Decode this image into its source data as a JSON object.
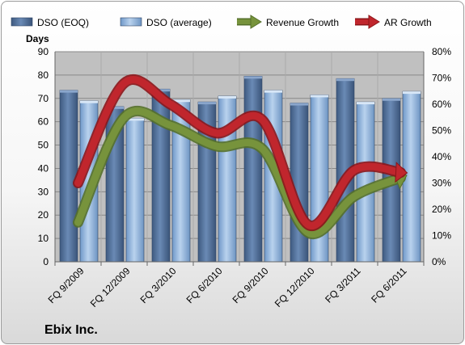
{
  "chart_data": {
    "type": "bar",
    "company": "Ebix Inc.",
    "ylabel": "Days",
    "categories": [
      "FQ 9/2009",
      "FQ 12/2009",
      "FQ 3/2010",
      "FQ 6/2010",
      "FQ 9/2010",
      "FQ 12/2010",
      "FQ 3/2011",
      "FQ 6/2011"
    ],
    "ylim": [
      0,
      90
    ],
    "y2lim": [
      0,
      0.8
    ],
    "yticks": [
      "0",
      "10",
      "20",
      "30",
      "40",
      "50",
      "60",
      "70",
      "80",
      "90"
    ],
    "y2ticks": [
      "0%",
      "10%",
      "20%",
      "30%",
      "40%",
      "50%",
      "60%",
      "70%",
      "80%"
    ],
    "series": [
      {
        "name": "DSO (EOQ)",
        "kind": "bar",
        "axis": "left",
        "color": "#4f6d96",
        "values": [
          73.5,
          66.5,
          74,
          68.5,
          79.5,
          68,
          78.5,
          70
        ]
      },
      {
        "name": "DSO (average)",
        "kind": "bar",
        "axis": "left",
        "color": "#8fb4df",
        "values": [
          69,
          61.5,
          69.5,
          71,
          73.5,
          71.5,
          68.5,
          73
        ]
      },
      {
        "name": "Revenue Growth",
        "kind": "line",
        "axis": "right",
        "color": "#77933c",
        "values": [
          0.15,
          0.55,
          0.52,
          0.44,
          0.43,
          0.11,
          0.25,
          0.32
        ]
      },
      {
        "name": "AR Growth",
        "kind": "line",
        "axis": "right",
        "color": "#c0262d",
        "values": [
          0.3,
          0.68,
          0.6,
          0.49,
          0.54,
          0.14,
          0.35,
          0.34
        ]
      }
    ],
    "legend": "top",
    "grid": true
  }
}
